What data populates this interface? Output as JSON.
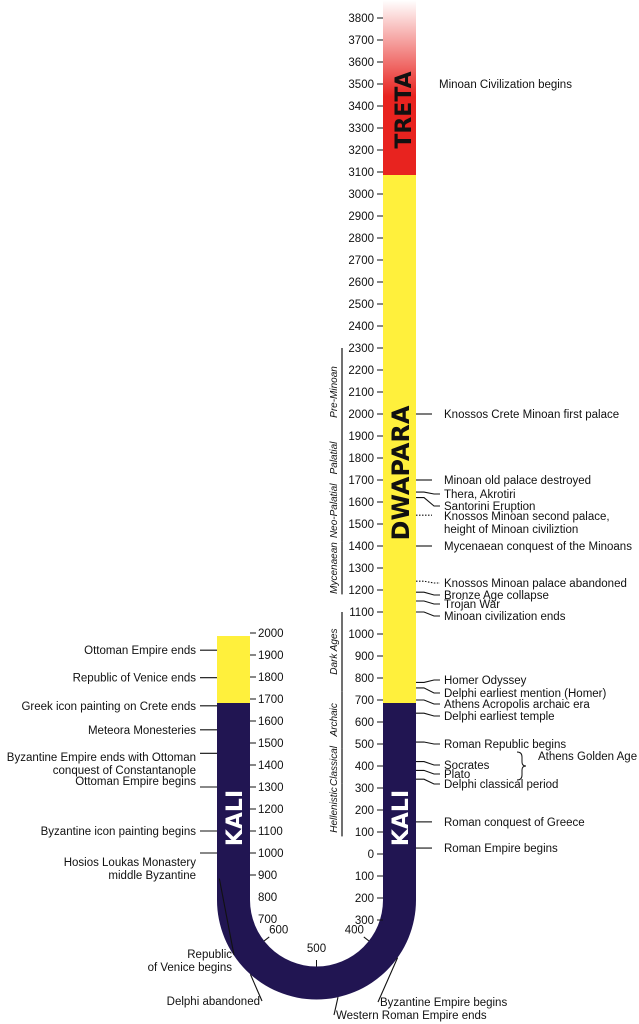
{
  "colors": {
    "treta": "#e8231f",
    "dwapara": "#fff03c",
    "kali": "#211552",
    "line": "#111111"
  },
  "yugas": {
    "treta": "TRETA",
    "dwapara": "DWAPARA",
    "kali_right": "KALI",
    "kali_left": "KALI"
  },
  "right_ticks": [
    {
      "label": "3800",
      "value": 3800
    },
    {
      "label": "3700",
      "value": 3700
    },
    {
      "label": "3600",
      "value": 3600
    },
    {
      "label": "3500",
      "value": 3500
    },
    {
      "label": "3400",
      "value": 3400
    },
    {
      "label": "3300",
      "value": 3300
    },
    {
      "label": "3200",
      "value": 3200
    },
    {
      "label": "3100",
      "value": 3100
    },
    {
      "label": "3000",
      "value": 3000
    },
    {
      "label": "2900",
      "value": 2900
    },
    {
      "label": "2800",
      "value": 2800
    },
    {
      "label": "2700",
      "value": 2700
    },
    {
      "label": "2600",
      "value": 2600
    },
    {
      "label": "2500",
      "value": 2500
    },
    {
      "label": "2400",
      "value": 2400
    },
    {
      "label": "2300",
      "value": 2300
    },
    {
      "label": "2200",
      "value": 2200
    },
    {
      "label": "2100",
      "value": 2100
    },
    {
      "label": "2000",
      "value": 2000
    },
    {
      "label": "1900",
      "value": 1900
    },
    {
      "label": "1800",
      "value": 1800
    },
    {
      "label": "1700",
      "value": 1700
    },
    {
      "label": "1600",
      "value": 1600
    },
    {
      "label": "1500",
      "value": 1500
    },
    {
      "label": "1400",
      "value": 1400
    },
    {
      "label": "1300",
      "value": 1300
    },
    {
      "label": "1200",
      "value": 1200
    },
    {
      "label": "1100",
      "value": 1100
    },
    {
      "label": "1000",
      "value": 1000
    },
    {
      "label": "900",
      "value": 900
    },
    {
      "label": "800",
      "value": 800
    },
    {
      "label": "700",
      "value": 700
    },
    {
      "label": "600",
      "value": 600
    },
    {
      "label": "500",
      "value": 500
    },
    {
      "label": "400",
      "value": 400
    },
    {
      "label": "300",
      "value": 300
    },
    {
      "label": "200",
      "value": 200
    },
    {
      "label": "100",
      "value": 100
    },
    {
      "label": "0",
      "value": 0
    },
    {
      "label": "100",
      "value": -100
    },
    {
      "label": "200",
      "value": -200
    },
    {
      "label": "300",
      "value": -300
    }
  ],
  "left_ticks": [
    {
      "label": "2000",
      "value": 2000
    },
    {
      "label": "1900",
      "value": 1900
    },
    {
      "label": "1800",
      "value": 1800
    },
    {
      "label": "1700",
      "value": 1700
    },
    {
      "label": "1600",
      "value": 1600
    },
    {
      "label": "1500",
      "value": 1500
    },
    {
      "label": "1400",
      "value": 1400
    },
    {
      "label": "1300",
      "value": 1300
    },
    {
      "label": "1200",
      "value": 1200
    },
    {
      "label": "1100",
      "value": 1100
    },
    {
      "label": "1000",
      "value": 1000
    },
    {
      "label": "900",
      "value": 900
    },
    {
      "label": "800",
      "value": 800
    },
    {
      "label": "700",
      "value": 700
    }
  ],
  "arc_ticks": [
    {
      "label": "400",
      "value": 400
    },
    {
      "label": "500",
      "value": 500
    },
    {
      "label": "600",
      "value": 600
    }
  ],
  "periods": [
    {
      "label": "Pre-Minoan",
      "from": 2300,
      "to": 1900
    },
    {
      "label": "Palatial",
      "from": 1900,
      "to": 1700
    },
    {
      "label": "Neo-Palatial",
      "from": 1700,
      "to": 1420
    },
    {
      "label": "Mycenaean",
      "from": 1420,
      "to": 1180
    },
    {
      "label": "Dark Ages",
      "from": 1100,
      "to": 740
    },
    {
      "label": "Archaic",
      "from": 740,
      "to": 480
    },
    {
      "label": "Classical",
      "from": 480,
      "to": 320
    },
    {
      "label": "Hellenistic",
      "from": 320,
      "to": 80
    }
  ],
  "right_events": [
    {
      "lines": [
        "Minoan Civilization begins"
      ],
      "value": 3500,
      "style": "none"
    },
    {
      "lines": [
        "Knossos Crete Minoan first palace"
      ],
      "value": 2000,
      "style": "solid"
    },
    {
      "lines": [
        "Minoan old palace destroyed"
      ],
      "value": 1700,
      "style": "solid"
    },
    {
      "lines": [
        "Thera, Akrotiri"
      ],
      "value": 1645,
      "style": "solid"
    },
    {
      "lines": [
        "Santorini  Eruption"
      ],
      "value": 1620,
      "style": "solid"
    },
    {
      "lines": [
        "Knossos Minoan second palace,",
        "height of Minoan civiliztion"
      ],
      "value": 1540,
      "style": "dotted"
    },
    {
      "lines": [
        "Mycenaean conquest of the Minoans"
      ],
      "value": 1400,
      "style": "solid"
    },
    {
      "lines": [
        "Knossos Minoan palace abandoned"
      ],
      "value": 1240,
      "style": "dotted"
    },
    {
      "lines": [
        "Bronze Age collapse"
      ],
      "value": 1190,
      "style": "solid"
    },
    {
      "lines": [
        "Trojan War"
      ],
      "value": 1150,
      "style": "solid"
    },
    {
      "lines": [
        "Minoan civilization ends"
      ],
      "value": 1100,
      "style": "solid"
    },
    {
      "lines": [
        "Homer Odyssey"
      ],
      "value": 780,
      "style": "solid"
    },
    {
      "lines": [
        "Delphi earliest mention (Homer)"
      ],
      "value": 755,
      "style": "solid"
    },
    {
      "lines": [
        "Athens Acropolis archaic era"
      ],
      "value": 700,
      "style": "solid"
    },
    {
      "lines": [
        "Delphi earliest temple"
      ],
      "value": 640,
      "style": "solid"
    },
    {
      "lines": [
        "Roman Republic begins"
      ],
      "value": 509,
      "style": "solid"
    },
    {
      "lines": [
        "Socrates"
      ],
      "value": 420,
      "style": "solid"
    },
    {
      "lines": [
        "Plato"
      ],
      "value": 380,
      "style": "solid"
    },
    {
      "lines": [
        "Delphi classical period"
      ],
      "value": 340,
      "style": "solid"
    },
    {
      "lines": [
        "Roman conquest of Greece"
      ],
      "value": 146,
      "style": "solid"
    },
    {
      "lines": [
        "Roman Empire begins"
      ],
      "value": 27,
      "style": "solid"
    }
  ],
  "bracket_note": "Athens Golden Age",
  "left_events": [
    {
      "lines": [
        "Ottoman Empire ends"
      ],
      "value": 1922
    },
    {
      "lines": [
        "Republic of Venice ends"
      ],
      "value": 1797
    },
    {
      "lines": [
        "Greek icon painting on Crete ends"
      ],
      "value": 1669
    },
    {
      "lines": [
        "Meteora Monesteries"
      ],
      "value": 1560
    },
    {
      "lines": [
        "Byzantine Empire ends with Ottoman",
        "conquest of Constantanople"
      ],
      "value": 1453
    },
    {
      "lines": [
        "Ottoman Empire begins"
      ],
      "value": 1300
    },
    {
      "lines": [
        "Byzantine icon painting begins"
      ],
      "value": 1100
    },
    {
      "lines": [
        "Hosios Loukas Monastery",
        "middle Byzantine"
      ],
      "value": 1000
    }
  ],
  "arc_events": [
    {
      "lines": [
        "Republic",
        "of Venice begins"
      ],
      "value": 697
    },
    {
      "lines": [
        "Delphi abandoned"
      ],
      "value": 580
    },
    {
      "lines": [
        "Western Roman Empire ends"
      ],
      "value": 476
    },
    {
      "lines": [
        "Byzantine Empire begins"
      ],
      "value": 395
    }
  ]
}
